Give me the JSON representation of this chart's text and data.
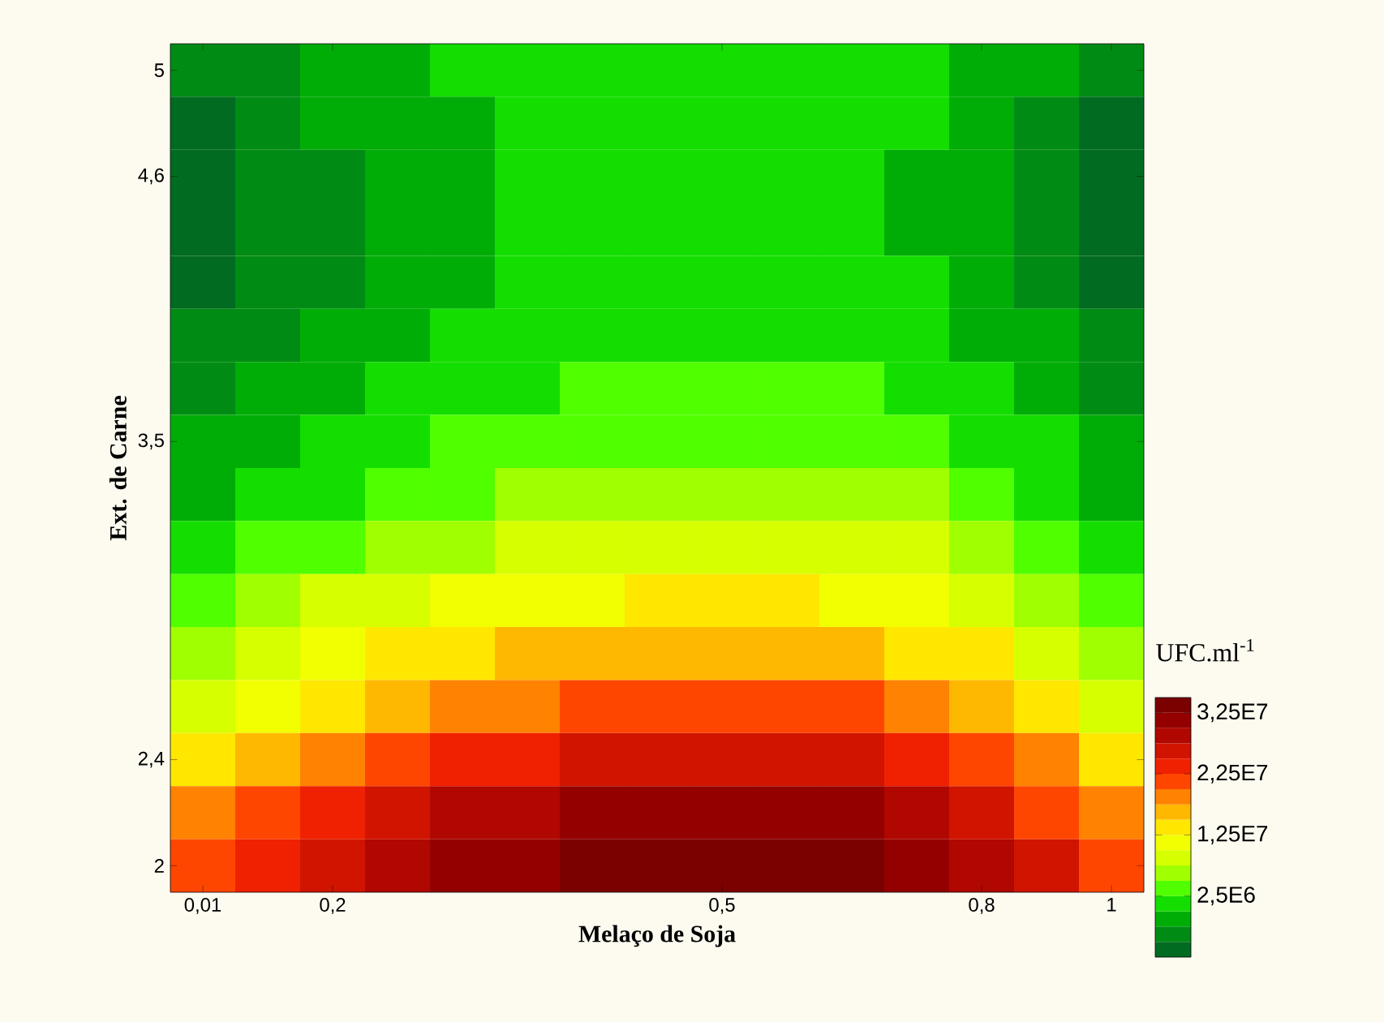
{
  "chart_data": {
    "type": "heatmap",
    "xlabel": "Melaço de Soja",
    "ylabel": "Ext. de Carne",
    "clabel": "UFC.ml$^{-1}$",
    "categories": [
      "0,01",
      null,
      "0,2",
      null,
      null,
      null,
      null,
      null,
      "0,5",
      null,
      null,
      null,
      "0,8",
      null,
      "1"
    ],
    "y_categories": [
      "5",
      null,
      "4,6",
      null,
      null,
      null,
      null,
      "3,5",
      null,
      null,
      null,
      null,
      null,
      "2,4",
      null,
      "2"
    ],
    "cells": [
      [
        -4000000.0,
        -2700000.0,
        -1500000.0,
        -500000.0,
        400000.0,
        1000000.0,
        1500000.0,
        1800000.0,
        2000000.0,
        1900000.0,
        1500000.0,
        700000.0,
        -500000.0,
        -2000000.0,
        -4000000.0
      ],
      [
        -5400000.0,
        -3900000.0,
        -2500000.0,
        -1300000.0,
        -300000.0,
        500000.0,
        1000000.0,
        1400000.0,
        1600000.0,
        1500000.0,
        1000000.0,
        100000.0,
        -1300000.0,
        -3100000.0,
        -5400000.0
      ],
      [
        -6600000.0,
        -4800000.0,
        -3200000.0,
        -1900000.0,
        -800000.0,
        100000.0,
        800000.0,
        1200000.0,
        1400000.0,
        1300000.0,
        800000.0,
        -400000.0,
        -1900000.0,
        -4000000.0,
        -6600000.0
      ],
      [
        -6500000.0,
        -4700000.0,
        -3100000.0,
        -1800000.0,
        -700000.0,
        200000.0,
        900000.0,
        1300000.0,
        1500000.0,
        1400000.0,
        900000.0,
        -300000.0,
        -1800000.0,
        -3900000.0,
        -6500000.0
      ],
      [
        -5700000.0,
        -4100000.0,
        -2600000.0,
        -1300000.0,
        -200000.0,
        600000.0,
        1200000.0,
        1600000.0,
        1800000.0,
        1700000.0,
        1200000.0,
        200000.0,
        -1300000.0,
        -3200000.0,
        -5700000.0
      ],
      [
        -4700000.0,
        -3200000.0,
        -1800000.0,
        -600000.0,
        400000.0,
        1200000.0,
        1700000.0,
        2100000.0,
        2300000.0,
        2200000.0,
        1700000.0,
        800000.0,
        -600000.0,
        -2400000.0,
        -4700000.0
      ],
      [
        -3300000.0,
        -1900000.0,
        -600000.0,
        500000.0,
        1400000.0,
        2200000.0,
        2700000.0,
        3000000.0,
        3200000.0,
        3100000.0,
        2700000.0,
        1800000.0,
        500000.0,
        -1200000.0,
        -3300000.0
      ],
      [
        -2000000.0,
        -600000.0,
        700000.0,
        1800000.0,
        2700000.0,
        3500000.0,
        4000000.0,
        4300000.0,
        4500000.0,
        4400000.0,
        4000000.0,
        3100000.0,
        1800000.0,
        100000.0,
        -2000000.0
      ],
      [
        -500000.0,
        1000000.0,
        2400000.0,
        3600000.0,
        4600000.0,
        5400000.0,
        5900000.0,
        6300000.0,
        6500000.0,
        6400000.0,
        5900000.0,
        5000000.0,
        3600000.0,
        1800000.0,
        -500000.0
      ],
      [
        1500000.0,
        3300000.0,
        4900000.0,
        6200000.0,
        7300000.0,
        8200000.0,
        8900000.0,
        9300000.0,
        9500000.0,
        9400000.0,
        8900000.0,
        7700000.0,
        6200000.0,
        4100000.0,
        1500000.0
      ],
      [
        4000000.0,
        6000000.0,
        7800000.0,
        9300000.0,
        10600000.0,
        11600000.0,
        12300000.0,
        12700000.0,
        13000000.0,
        12900000.0,
        12300000.0,
        11000000.0,
        9300000.0,
        7000000.0,
        4000000.0
      ],
      [
        6000000.0,
        8400000.0,
        10600000.0,
        12500000.0,
        14000000.0,
        15200000.0,
        16100000.0,
        16700000.0,
        17000000.0,
        16900000.0,
        16100000.0,
        14600000.0,
        12500000.0,
        9600000.0,
        6000000.0
      ],
      [
        9000000.0,
        11900000.0,
        14500000.0,
        16700000.0,
        18500000.0,
        19900000.0,
        21000000.0,
        21600000.0,
        22000000.0,
        21900000.0,
        21000000.0,
        19100000.0,
        16700000.0,
        13300000.0,
        9000000.0
      ],
      [
        13000000.0,
        16100000.0,
        18900000.0,
        21300000.0,
        23200000.0,
        24800000.0,
        25900000.0,
        26600000.0,
        27000000.0,
        26900000.0,
        25900000.0,
        23900000.0,
        21300000.0,
        17600000.0,
        13000000.0
      ],
      [
        18000000.0,
        20900000.0,
        23500000.0,
        25700000.0,
        27500000.0,
        28900000.0,
        30000000.0,
        30600000.0,
        31000000.0,
        30900000.0,
        30000000.0,
        28100000.0,
        25700000.0,
        22300000.0,
        18000000.0
      ],
      [
        22000000.0,
        24600000.0,
        27000000.0,
        29100000.0,
        30800000.0,
        32100000.0,
        33000000.0,
        33600000.0,
        34000000.0,
        33900000.0,
        33000000.0,
        31400000.0,
        29100000.0,
        26000000.0,
        22000000.0
      ]
    ],
    "clim": [
      -7500000.0,
      35000000.0
    ],
    "cticks": [
      {
        "value": 2500000.0,
        "label": "2,5E6"
      },
      {
        "value": 12500000.0,
        "label": "1,25E7"
      },
      {
        "value": 22500000.0,
        "label": "2,25E7"
      },
      {
        "value": 32500000.0,
        "label": "3,25E7"
      }
    ]
  }
}
